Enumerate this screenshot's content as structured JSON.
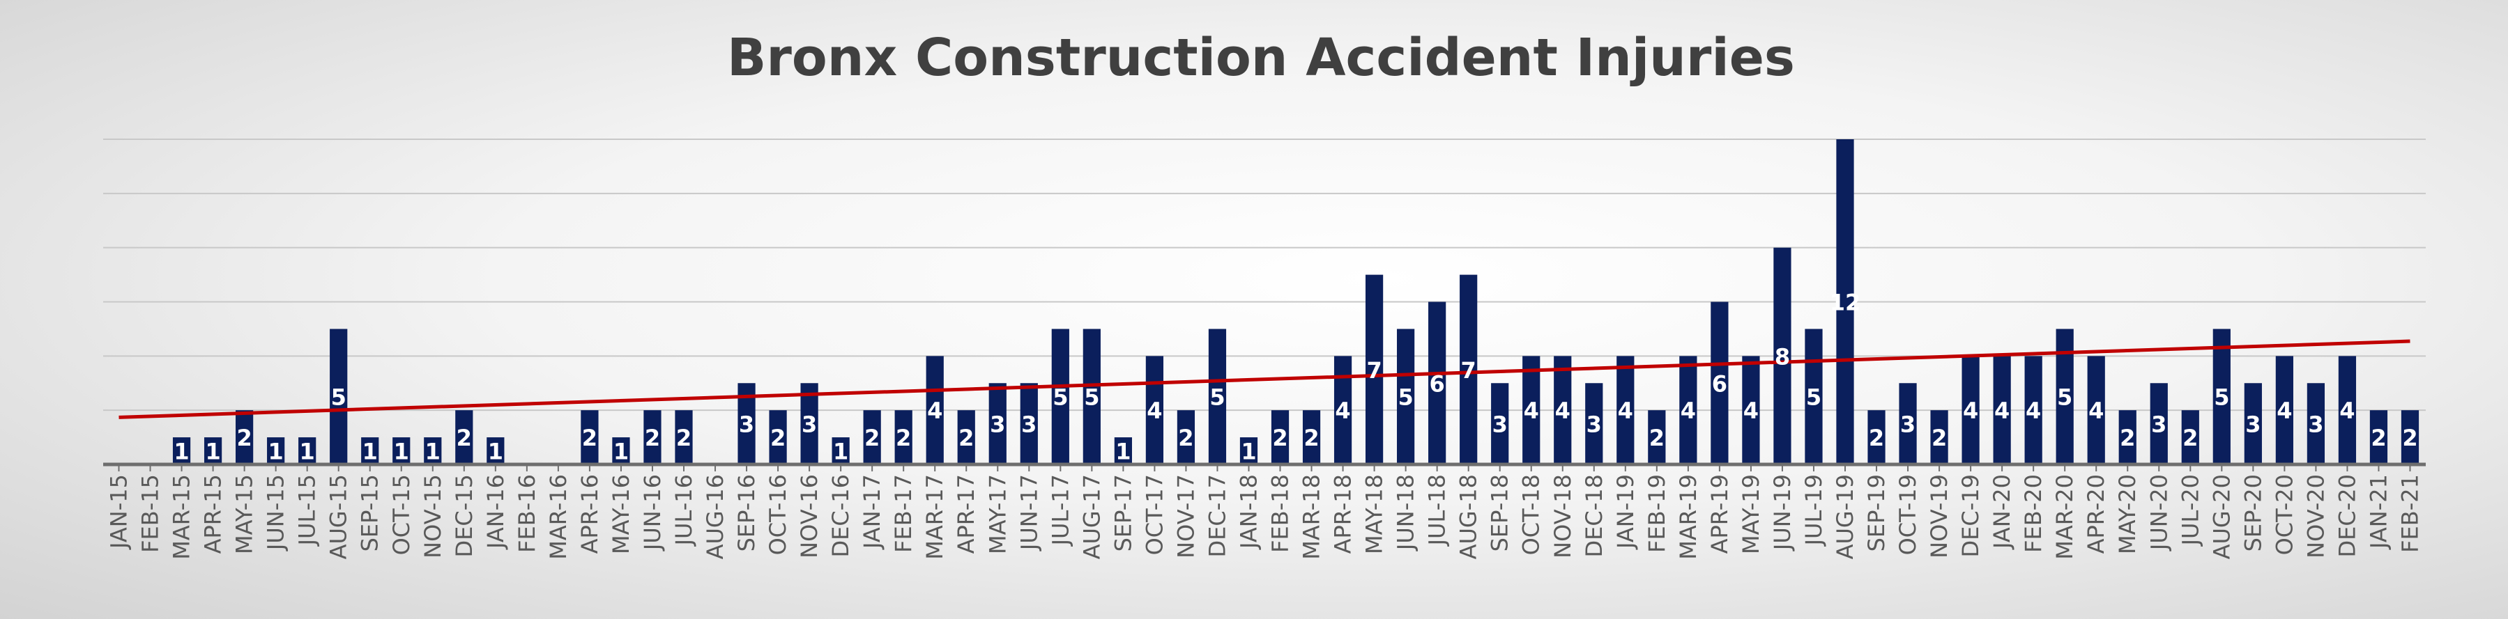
{
  "chart_data": {
    "type": "bar",
    "title": "Bronx Construction Accident Injuries",
    "xlabel": "",
    "ylabel": "",
    "ylim": [
      0,
      12
    ],
    "y_gridlines": [
      2,
      4,
      6,
      8,
      10,
      12
    ],
    "grid": true,
    "legend": "none",
    "trendline": "linear",
    "colors": {
      "bar": "#0b1f5c",
      "trendline": "#c00000",
      "axis": "#6e6e6e",
      "grid": "#c8c8c8",
      "label": "#ffffff"
    },
    "categories": [
      "JAN-15",
      "FEB-15",
      "MAR-15",
      "APR-15",
      "MAY-15",
      "JUN-15",
      "JUL-15",
      "AUG-15",
      "SEP-15",
      "OCT-15",
      "NOV-15",
      "DEC-15",
      "JAN-16",
      "FEB-16",
      "MAR-16",
      "APR-16",
      "MAY-16",
      "JUN-16",
      "JUL-16",
      "AUG-16",
      "SEP-16",
      "OCT-16",
      "NOV-16",
      "DEC-16",
      "JAN-17",
      "FEB-17",
      "MAR-17",
      "APR-17",
      "MAY-17",
      "JUN-17",
      "JUL-17",
      "AUG-17",
      "SEP-17",
      "OCT-17",
      "NOV-17",
      "DEC-17",
      "JAN-18",
      "FEB-18",
      "MAR-18",
      "APR-18",
      "MAY-18",
      "JUN-18",
      "JUL-18",
      "AUG-18",
      "SEP-18",
      "OCT-18",
      "NOV-18",
      "DEC-18",
      "JAN-19",
      "FEB-19",
      "MAR-19",
      "APR-19",
      "MAY-19",
      "JUN-19",
      "JUL-19",
      "AUG-19",
      "SEP-19",
      "OCT-19",
      "NOV-19",
      "DEC-19",
      "JAN-20",
      "FEB-20",
      "MAR-20",
      "APR-20",
      "MAY-20",
      "JUN-20",
      "JUL-20",
      "AUG-20",
      "SEP-20",
      "OCT-20",
      "NOV-20",
      "DEC-20",
      "JAN-21",
      "FEB-21"
    ],
    "values": [
      null,
      null,
      1,
      1,
      2,
      1,
      1,
      5,
      1,
      1,
      1,
      2,
      1,
      null,
      null,
      2,
      1,
      2,
      2,
      null,
      3,
      2,
      3,
      1,
      2,
      2,
      4,
      2,
      3,
      3,
      5,
      5,
      1,
      4,
      2,
      5,
      1,
      2,
      2,
      4,
      7,
      5,
      6,
      7,
      3,
      4,
      4,
      3,
      4,
      2,
      4,
      6,
      4,
      8,
      5,
      12,
      2,
      3,
      2,
      4,
      4,
      4,
      5,
      4,
      2,
      3,
      2,
      5,
      3,
      4,
      3,
      4,
      2,
      2
    ],
    "data_labels": [
      "",
      "",
      "1",
      "1",
      "2",
      "1",
      "1",
      "5",
      "1",
      "1",
      "1",
      "2",
      "1",
      "",
      "",
      "2",
      "1",
      "2",
      "2",
      "",
      "3",
      "2",
      "3",
      "1",
      "2",
      "2",
      "4",
      "2",
      "3",
      "3",
      "5",
      "5",
      "1",
      "4",
      "2",
      "5",
      "1",
      "2",
      "2",
      "4",
      "7",
      "5",
      "6",
      "7",
      "3",
      "4",
      "4",
      "3",
      "4",
      "2",
      "4",
      "6",
      "4",
      "8",
      "5",
      "12",
      "2",
      "3",
      "2",
      "4",
      "4",
      "4",
      "5",
      "4",
      "2",
      "3",
      "2",
      "5",
      "3",
      "4",
      "3",
      "4",
      "2",
      "2"
    ]
  }
}
